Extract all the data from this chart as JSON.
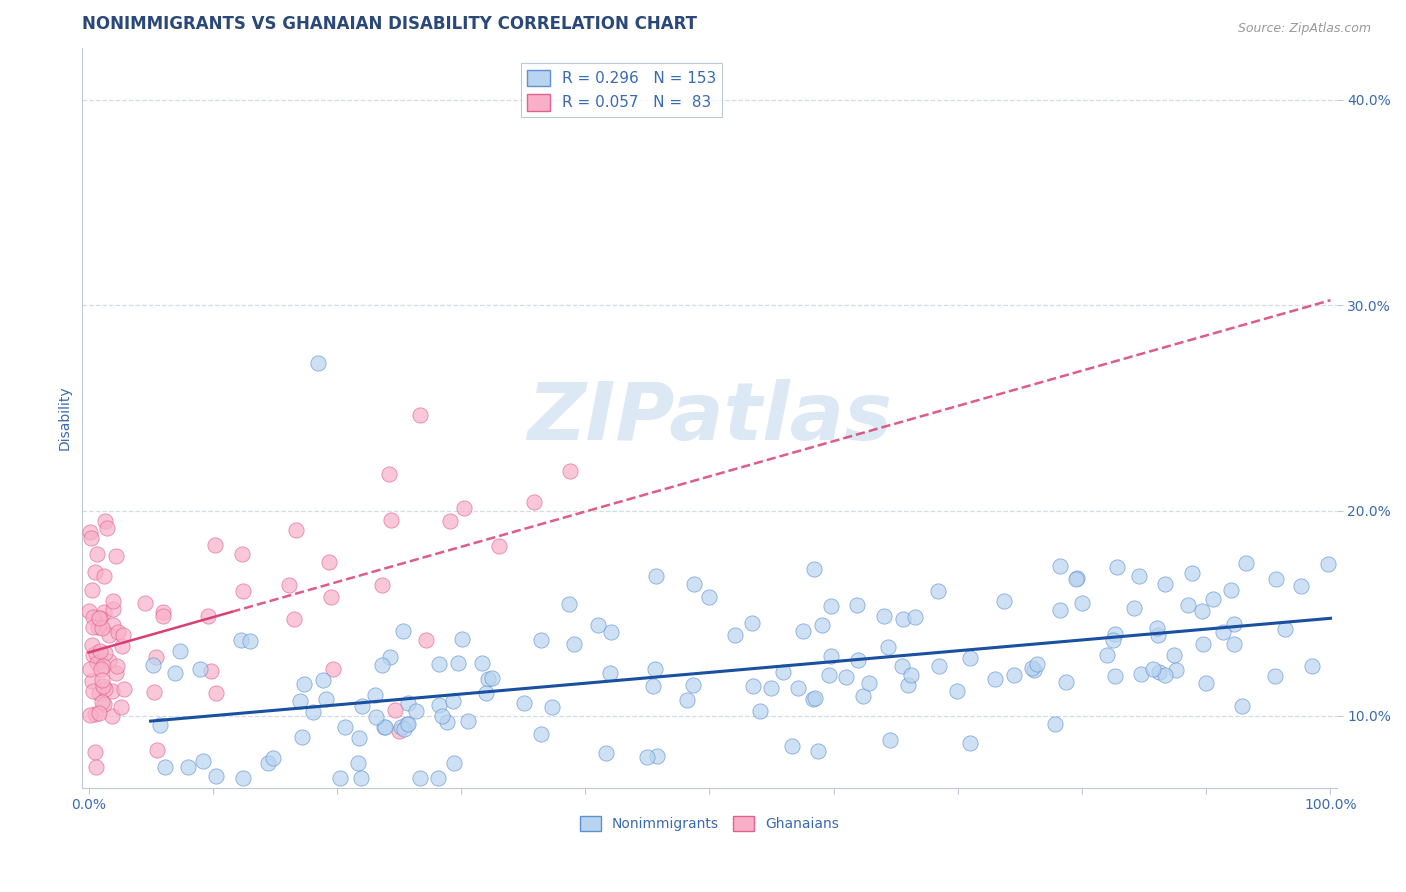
{
  "title": "NONIMMIGRANTS VS GHANAIAN DISABILITY CORRELATION CHART",
  "source_text": "Source: ZipAtlas.com",
  "ylabel": "Disability",
  "watermark_text": "ZIPatlas",
  "xlim": [
    -0.005,
    1.005
  ],
  "ylim": [
    0.065,
    0.425
  ],
  "xticks": [
    0.0,
    0.1,
    0.2,
    0.3,
    0.4,
    0.5,
    0.6,
    0.7,
    0.8,
    0.9,
    1.0
  ],
  "xticklabels": [
    "0.0%",
    "",
    "",
    "",
    "",
    "",
    "",
    "",
    "",
    "",
    "100.0%"
  ],
  "yticks": [
    0.1,
    0.2,
    0.3,
    0.4
  ],
  "yticklabels": [
    "10.0%",
    "20.0%",
    "30.0%",
    "40.0%"
  ],
  "title_color": "#2a4878",
  "axis_color": "#3a6ab0",
  "grid_color": "#d0dcea",
  "background_color": "#ffffff",
  "watermark_color": "#dce8f4",
  "watermark_fontsize": 58,
  "series": [
    {
      "name": "Nonimmigrants",
      "R": 0.296,
      "N": 153,
      "scatter_color": "#b8d4f0",
      "edge_color": "#6090d0",
      "trend_color": "#1a50a0",
      "trend_style": "solid",
      "trend_lw": 2.2
    },
    {
      "name": "Ghanaians",
      "R": 0.057,
      "N": 83,
      "scatter_color": "#f8b0c8",
      "edge_color": "#e06090",
      "trend_color": "#d84070",
      "trend_style": "dashed",
      "trend_lw": 1.8
    }
  ]
}
